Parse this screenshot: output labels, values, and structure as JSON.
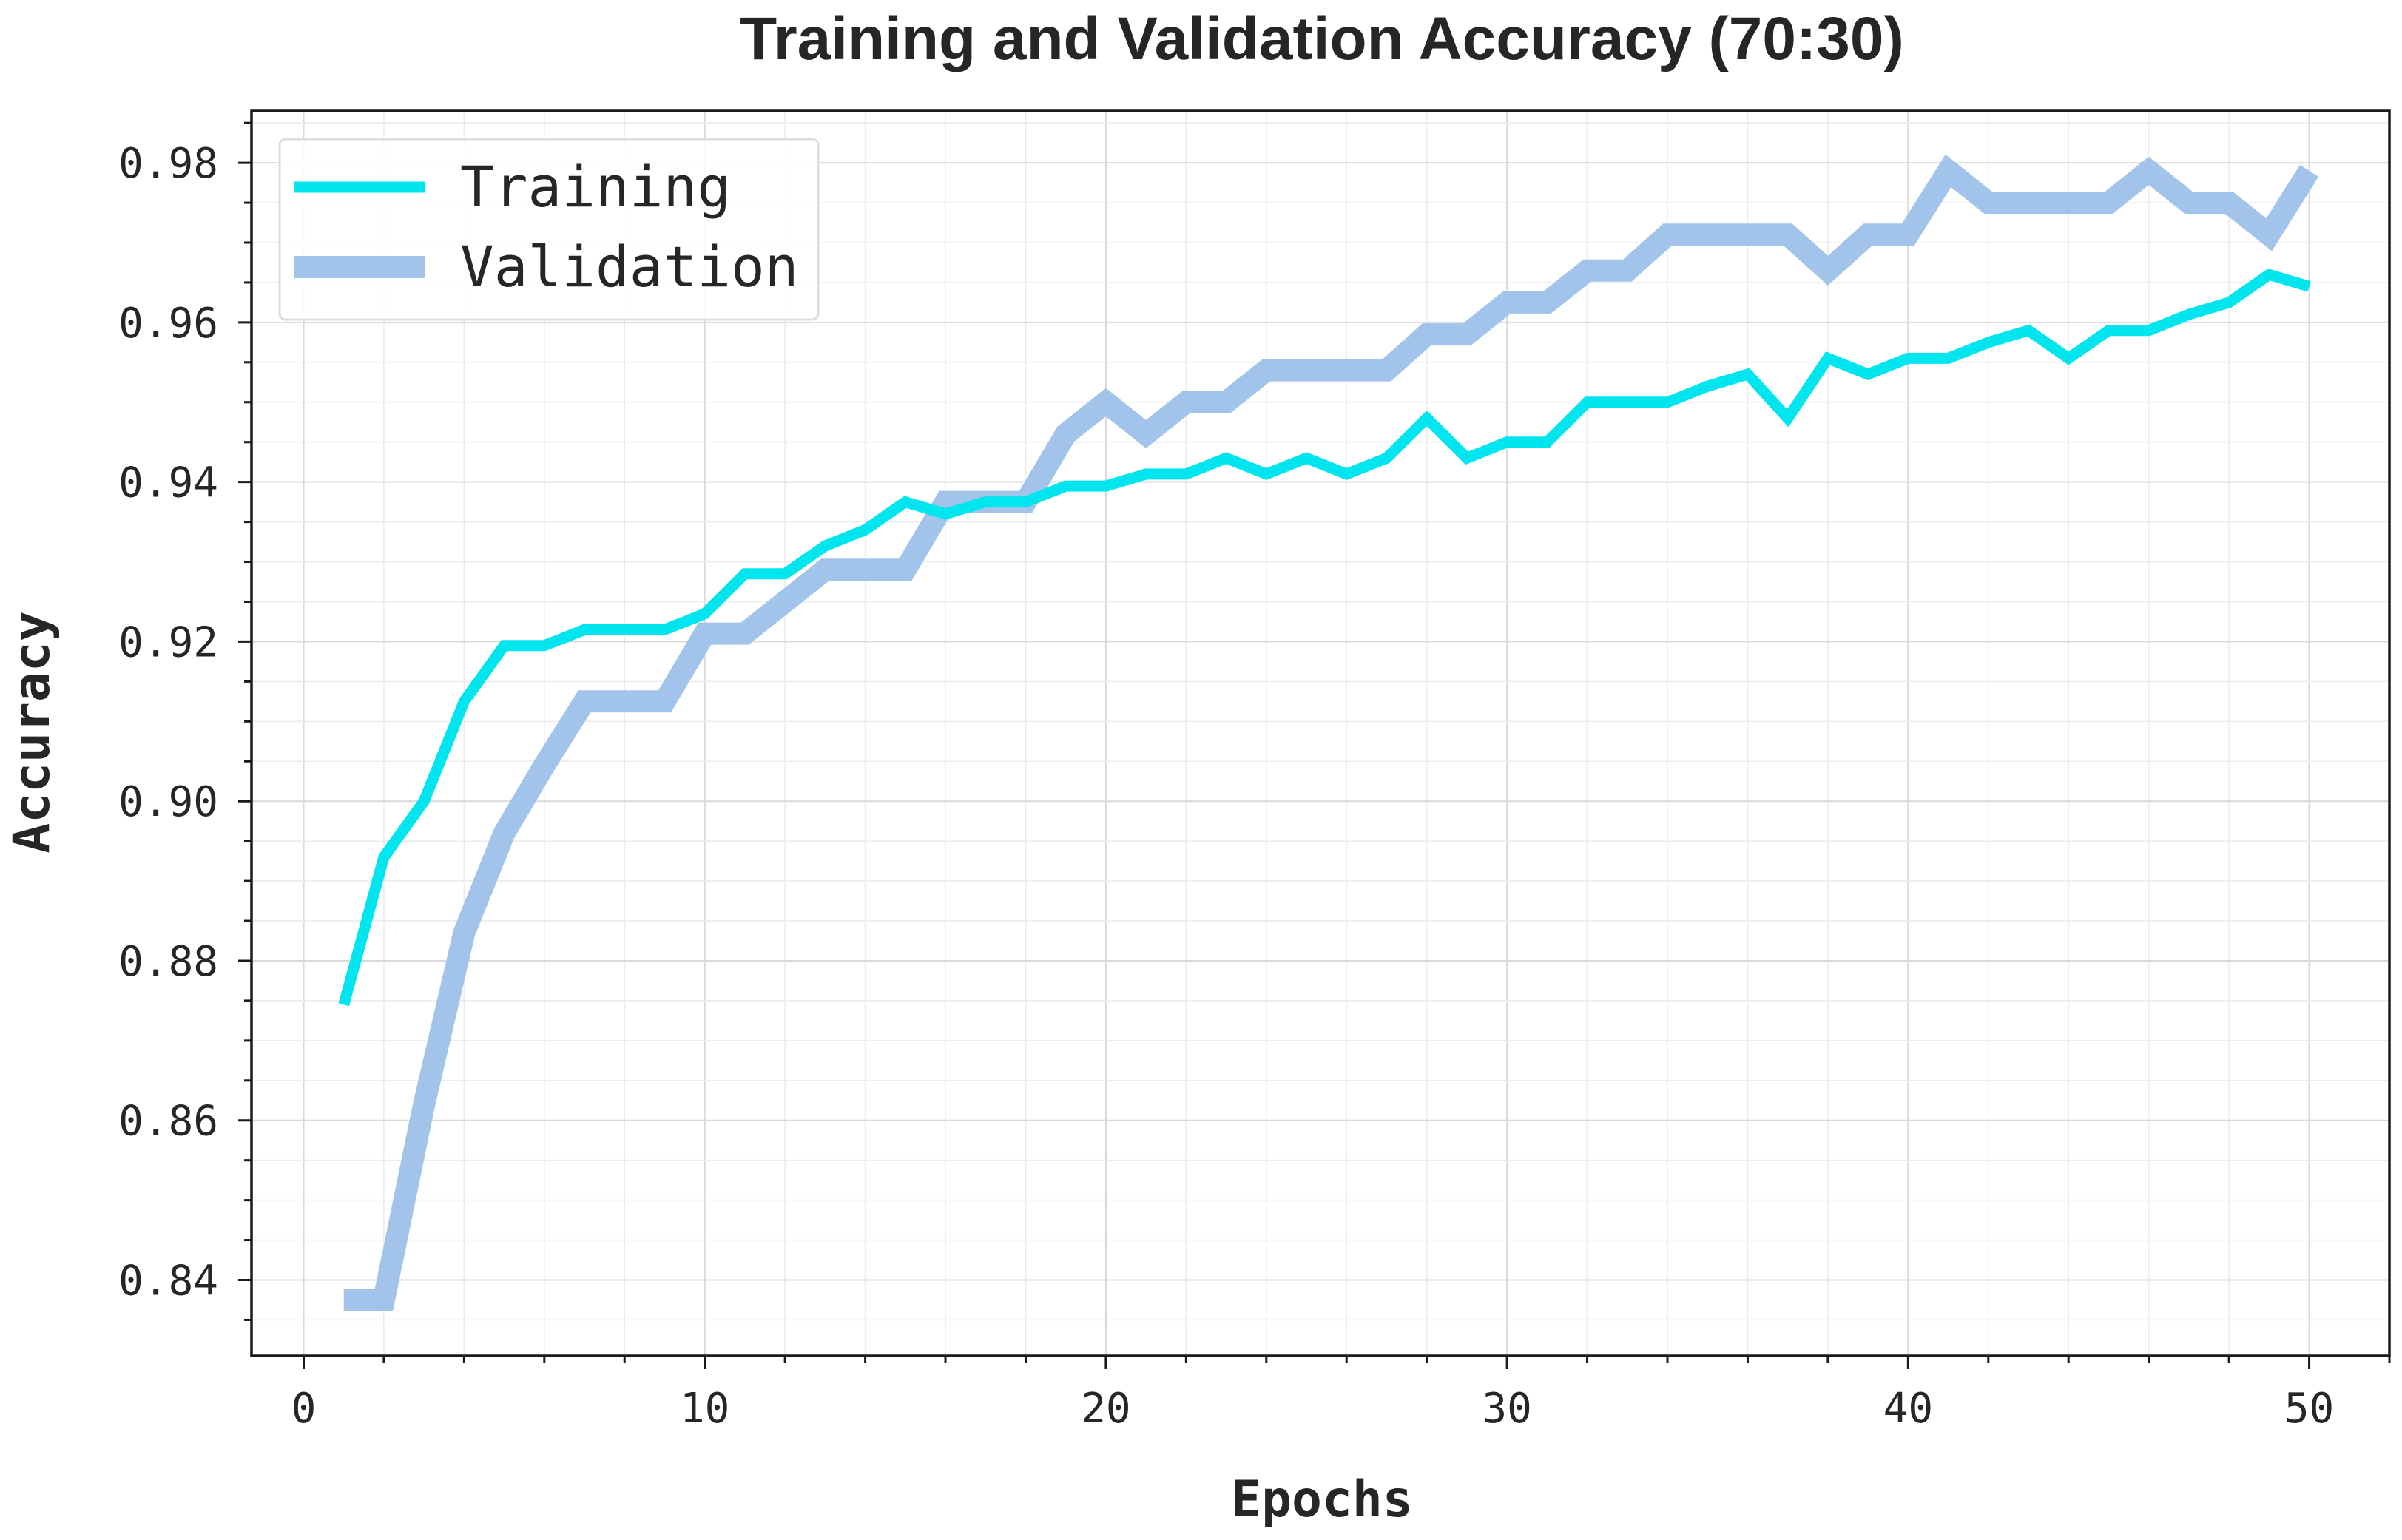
{
  "chart_data": {
    "type": "line",
    "title": "Training and Validation Accuracy (70:30)",
    "xlabel": "Epochs",
    "ylabel": "Accuracy",
    "xlim": [
      -1.3,
      52
    ],
    "ylim": [
      0.8305,
      0.9865
    ],
    "xticks": [
      0,
      10,
      20,
      30,
      40,
      50
    ],
    "yticks": [
      0.84,
      0.86,
      0.88,
      0.9,
      0.92,
      0.94,
      0.96,
      0.98
    ],
    "xtick_labels": [
      "0",
      "10",
      "20",
      "30",
      "40",
      "50"
    ],
    "ytick_labels": [
      "0.84",
      "0.86",
      "0.88",
      "0.90",
      "0.92",
      "0.94",
      "0.96",
      "0.98"
    ],
    "grid": true,
    "legend_position": "top-left",
    "x": [
      1,
      2,
      3,
      4,
      5,
      6,
      7,
      8,
      9,
      10,
      11,
      12,
      13,
      14,
      15,
      16,
      17,
      18,
      19,
      20,
      21,
      22,
      23,
      24,
      25,
      26,
      27,
      28,
      29,
      30,
      31,
      32,
      33,
      34,
      35,
      36,
      37,
      38,
      39,
      40,
      41,
      42,
      43,
      44,
      45,
      46,
      47,
      48,
      49,
      50
    ],
    "series": [
      {
        "name": "Training",
        "color": "#00e5ee",
        "values": [
          0.8745,
          0.893,
          0.9,
          0.9125,
          0.9195,
          0.9195,
          0.9215,
          0.9215,
          0.9215,
          0.9235,
          0.9285,
          0.9285,
          0.932,
          0.934,
          0.9375,
          0.936,
          0.9375,
          0.9375,
          0.9395,
          0.9395,
          0.941,
          0.941,
          0.943,
          0.941,
          0.943,
          0.941,
          0.943,
          0.948,
          0.943,
          0.945,
          0.945,
          0.95,
          0.95,
          0.95,
          0.952,
          0.9535,
          0.948,
          0.9555,
          0.9535,
          0.9555,
          0.9555,
          0.9575,
          0.959,
          0.9555,
          0.959,
          0.959,
          0.961,
          0.9625,
          0.966,
          0.9645
        ]
      },
      {
        "name": "Validation",
        "color": "#a3c4ea",
        "values": [
          0.8375,
          0.8375,
          0.862,
          0.8835,
          0.896,
          0.9045,
          0.9125,
          0.9125,
          0.9125,
          0.921,
          0.921,
          0.925,
          0.929,
          0.929,
          0.929,
          0.9375,
          0.9375,
          0.9375,
          0.946,
          0.95,
          0.946,
          0.95,
          0.95,
          0.954,
          0.954,
          0.954,
          0.954,
          0.9585,
          0.9585,
          0.9625,
          0.9625,
          0.9665,
          0.9665,
          0.971,
          0.971,
          0.971,
          0.971,
          0.9665,
          0.971,
          0.971,
          0.979,
          0.975,
          0.975,
          0.975,
          0.975,
          0.979,
          0.975,
          0.975,
          0.971,
          0.979
        ]
      }
    ]
  }
}
